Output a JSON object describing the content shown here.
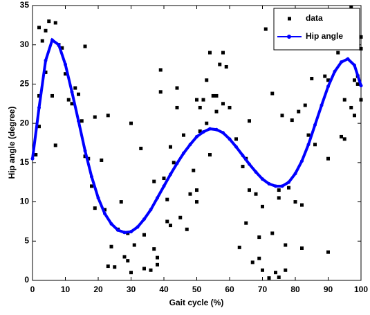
{
  "chart_data": {
    "type": "scatter",
    "xlabel": "Gait cycle (%)",
    "ylabel": "Hip angle (degree)",
    "xlim": [
      0,
      100
    ],
    "ylim": [
      0,
      35
    ],
    "xticks": [
      0,
      10,
      20,
      30,
      40,
      50,
      60,
      70,
      80,
      90,
      100
    ],
    "yticks": [
      0,
      5,
      10,
      15,
      20,
      25,
      30,
      35
    ],
    "grid": false,
    "legend": "upper right",
    "series": [
      {
        "name": "data",
        "type": "scatter",
        "color": "#000000",
        "x": [
          1,
          2,
          2,
          2,
          3,
          4,
          4,
          5,
          6,
          7,
          7,
          8,
          9,
          10,
          11,
          12,
          13,
          14,
          15,
          16,
          16,
          17,
          18,
          19,
          19,
          21,
          22,
          23,
          23,
          24,
          25,
          26,
          27,
          28,
          29,
          29,
          30,
          30,
          31,
          33,
          34,
          34,
          36,
          37,
          37,
          38,
          38,
          39,
          39,
          40,
          41,
          41,
          42,
          42,
          43,
          44,
          44,
          45,
          46,
          47,
          48,
          49,
          50,
          50,
          50,
          51,
          51,
          52,
          53,
          53,
          54,
          54,
          55,
          56,
          56,
          57,
          58,
          58,
          59,
          60,
          62,
          63,
          64,
          65,
          65,
          66,
          66,
          67,
          68,
          69,
          69,
          70,
          70,
          71,
          72,
          73,
          73,
          74,
          75,
          75,
          75,
          76,
          77,
          77,
          78,
          79,
          80,
          81,
          82,
          82,
          83,
          84,
          85,
          86,
          89,
          90,
          90,
          90,
          91,
          91,
          92,
          93,
          93,
          94,
          95,
          95,
          97,
          97,
          98,
          98,
          99,
          99,
          100,
          100,
          100,
          99
        ],
        "y": [
          16,
          19.6,
          23.5,
          32.2,
          30.5,
          26.5,
          31.8,
          33,
          23.5,
          17.2,
          32.8,
          30,
          29.6,
          26.3,
          23,
          22.5,
          24.5,
          23.7,
          20.3,
          29.8,
          15.8,
          15.5,
          12,
          20.8,
          9.2,
          15.3,
          9,
          1.8,
          21,
          4.3,
          1.7,
          6.5,
          10,
          3,
          2.5,
          6,
          1,
          20,
          4.5,
          16.8,
          1.5,
          5.8,
          1.3,
          4,
          12.6,
          2.9,
          2,
          24,
          26.8,
          13,
          10.3,
          7.5,
          17,
          7,
          15,
          22,
          24.5,
          8,
          18.5,
          6.5,
          11,
          14,
          11.5,
          10,
          23,
          19,
          22,
          23,
          25.5,
          20,
          16,
          29,
          23.5,
          21.5,
          23.5,
          27.5,
          29,
          22.5,
          27.2,
          22,
          18,
          4.2,
          14.5,
          15.5,
          7.3,
          11.5,
          20.3,
          2.3,
          11,
          2.8,
          5.5,
          9.4,
          1.3,
          32,
          0.3,
          23.8,
          6,
          1,
          10.5,
          0.4,
          11.5,
          21,
          4.5,
          1.3,
          11.8,
          20.4,
          10,
          21.5,
          9.6,
          4.1,
          22.3,
          18.5,
          25.7,
          17.3,
          26,
          15.5,
          3.6,
          25.5,
          30.5,
          29.6,
          29.9,
          30.2,
          29,
          18.3,
          18,
          23,
          34.8,
          22,
          21,
          25.5,
          33.7,
          26,
          31,
          23,
          29.5,
          25
        ]
      },
      {
        "name": "Hip angle",
        "type": "line",
        "color": "#0000ff",
        "x": [
          0,
          2,
          4,
          6,
          8,
          10,
          12,
          14,
          16,
          18,
          20,
          22,
          24,
          26,
          28,
          30,
          32,
          34,
          36,
          38,
          40,
          42,
          44,
          46,
          48,
          50,
          52,
          54,
          56,
          58,
          60,
          62,
          64,
          66,
          68,
          70,
          72,
          74,
          76,
          78,
          80,
          82,
          84,
          86,
          88,
          90,
          92,
          94,
          96,
          98,
          100
        ],
        "y": [
          15.5,
          22,
          28,
          30.6,
          30,
          27.5,
          24,
          20.3,
          16.5,
          13.2,
          10.5,
          8.5,
          7.2,
          6.4,
          6.1,
          6.2,
          6.8,
          7.8,
          9,
          10.5,
          12,
          13.5,
          14.9,
          16.2,
          17.3,
          18.3,
          18.9,
          19.3,
          19.2,
          18.8,
          18,
          17,
          15.9,
          14.8,
          13.8,
          12.9,
          12.3,
          12,
          12,
          12.5,
          13.6,
          15.2,
          17.3,
          19.8,
          22.3,
          24.7,
          26.6,
          27.8,
          28.2,
          27.4,
          24.8
        ]
      }
    ]
  }
}
